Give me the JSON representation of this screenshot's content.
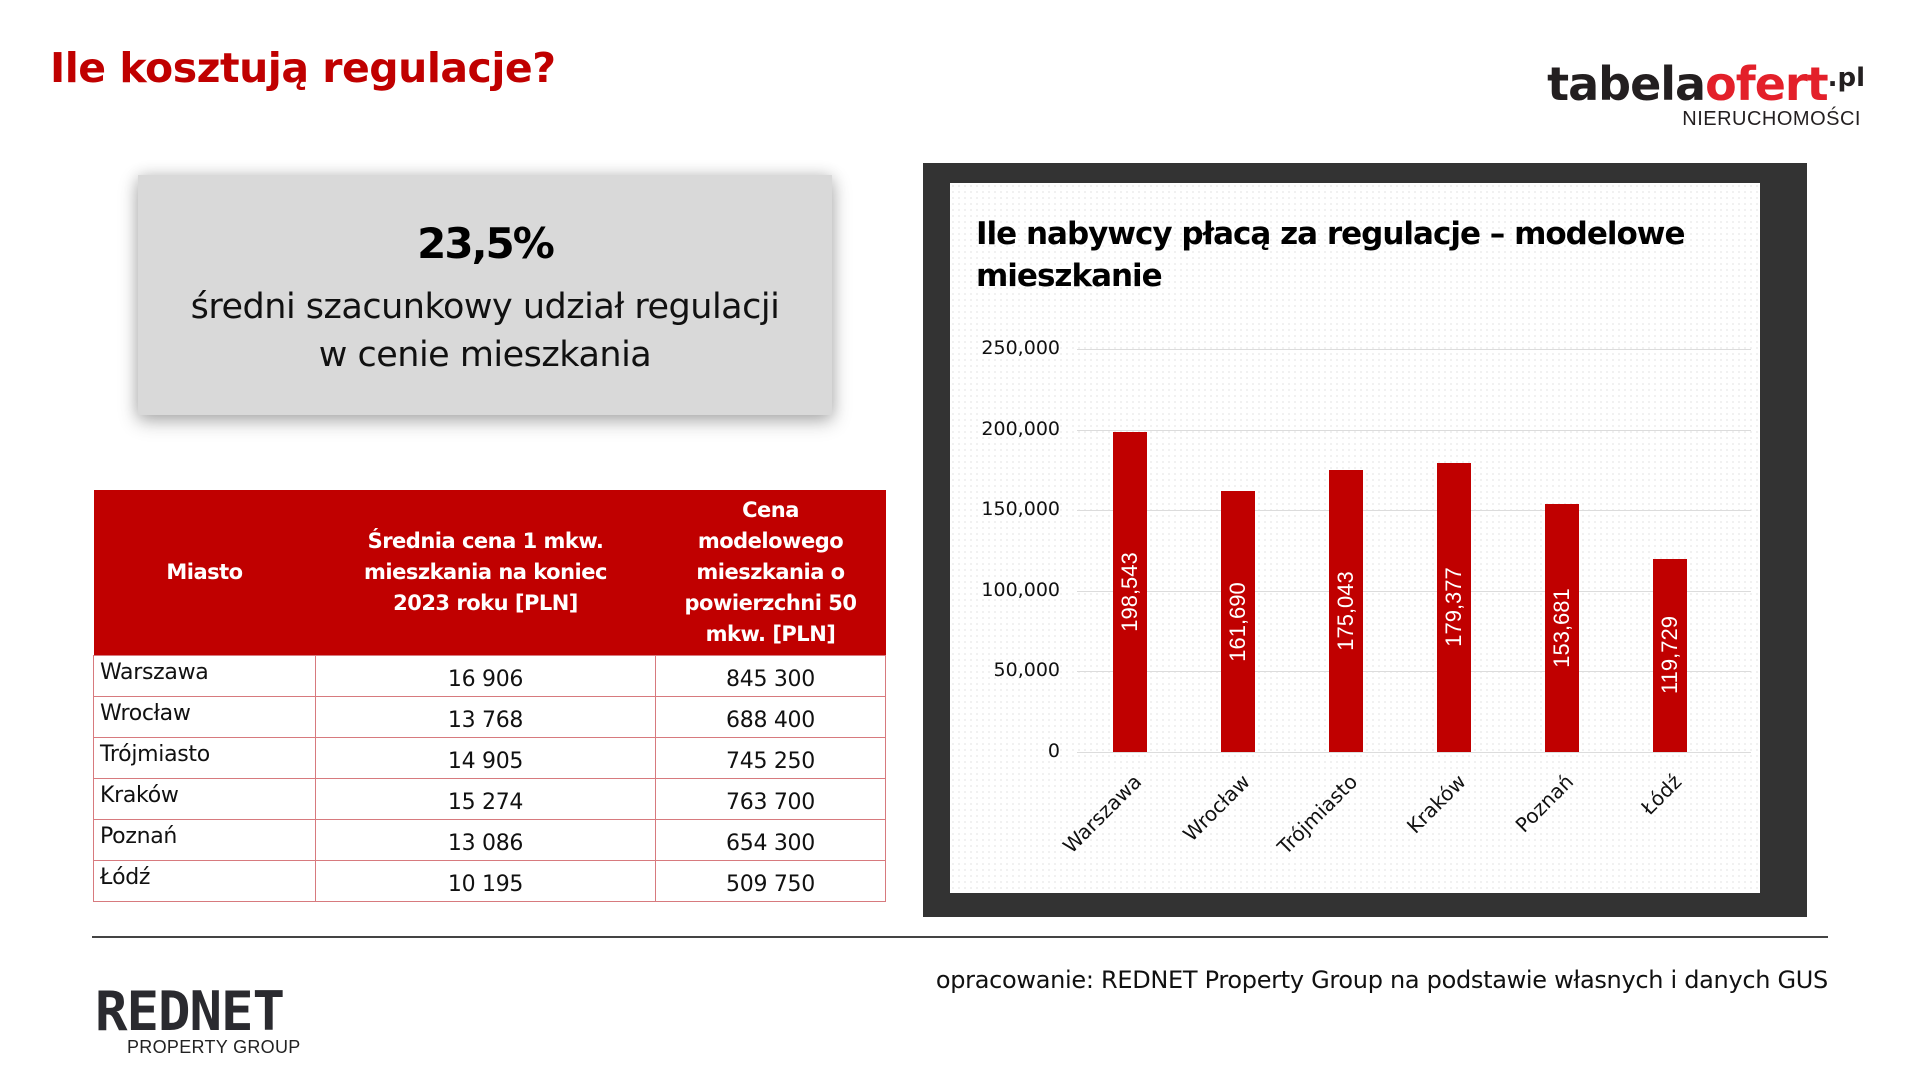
{
  "header": {
    "title": "Ile kosztują regulacje?",
    "logo": {
      "part_dark": "tabela",
      "part_red": "ofert",
      "tld": ".pl",
      "subtitle": "NIERUCHOMOŚCI"
    }
  },
  "kpi": {
    "value": "23,5%",
    "description_line1": "średni szacunkowy udział regulacji",
    "description_line2": "w cenie mieszkania"
  },
  "table": {
    "headers": [
      "Miasto",
      "Średnia cena 1 mkw. mieszkania na koniec 2023 roku [PLN]",
      "Cena modelowego mieszkania o powierzchni 50 mkw. [PLN]"
    ],
    "rows": [
      {
        "city": "Warszawa",
        "price_per_sqm": "16 906",
        "model_price": "845 300"
      },
      {
        "city": "Wrocław",
        "price_per_sqm": "13 768",
        "model_price": "688 400"
      },
      {
        "city": "Trójmiasto",
        "price_per_sqm": "14 905",
        "model_price": "745 250"
      },
      {
        "city": "Kraków",
        "price_per_sqm": "15 274",
        "model_price": "763 700"
      },
      {
        "city": "Poznań",
        "price_per_sqm": "13 086",
        "model_price": "654 300"
      },
      {
        "city": "Łódź",
        "price_per_sqm": "10 195",
        "model_price": "509 750"
      }
    ]
  },
  "chart_data": {
    "type": "bar",
    "title": "Ile nabywcy płacą za regulacje – modelowe mieszkanie",
    "categories": [
      "Warszawa",
      "Wrocław",
      "Trójmiasto",
      "Kraków",
      "Poznań",
      "Łódź"
    ],
    "values": [
      198543,
      161690,
      175043,
      179377,
      153681,
      119729
    ],
    "value_labels": [
      "198,543",
      "161,690",
      "175,043",
      "179,377",
      "153,681",
      "119,729"
    ],
    "xlabel": "",
    "ylabel": "",
    "ylim": [
      0,
      250000
    ],
    "yticks": [
      0,
      50000,
      100000,
      150000,
      200000,
      250000
    ],
    "ytick_labels": [
      "0",
      "50,000",
      "100,000",
      "150,000",
      "200,000",
      "250,000"
    ],
    "grid": true,
    "legend": "none",
    "bar_color": "#c00000",
    "xtick_rotation": -45,
    "data_labels": "inside, rotated vertical, white"
  },
  "footer": {
    "source": "opracowanie: REDNET Property Group na podstawie własnych i danych GUS",
    "logo_main": "REDNET",
    "logo_sub": "PROPERTY GROUP"
  },
  "colors": {
    "accent_red": "#c00000",
    "logo_red": "#e3202a",
    "frame_dark": "#333333",
    "kpi_bg": "#d9d9d9"
  }
}
